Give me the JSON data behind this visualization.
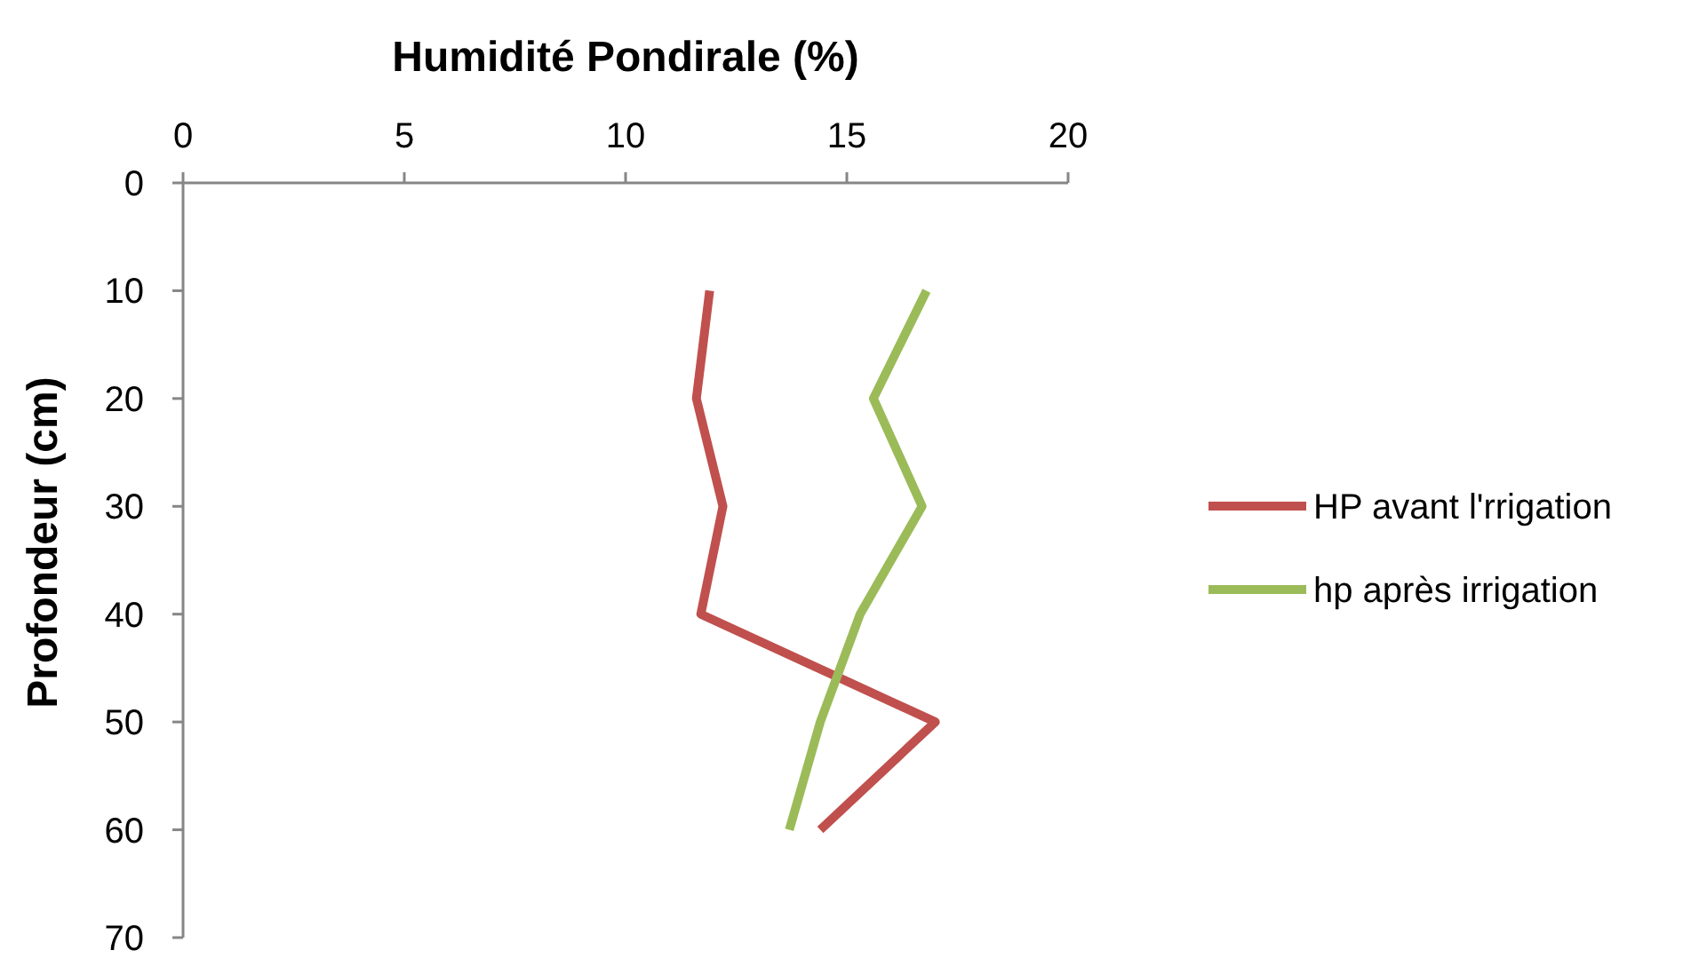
{
  "chart_data": {
    "type": "line",
    "xlabel": "Humidité Pondirale (%)",
    "ylabel": "Profondeur (cm)",
    "xlim": [
      0,
      20
    ],
    "xticks": [
      0,
      5,
      10,
      15,
      20
    ],
    "ylim": [
      70,
      0
    ],
    "yticks": [
      0,
      10,
      20,
      30,
      40,
      50,
      60,
      70
    ],
    "legend": "right",
    "grid": false,
    "series": [
      {
        "name": "HP avant l'rrigation",
        "color": "#c0504d",
        "x": [
          11.9,
          11.6,
          12.2,
          11.7,
          17.0,
          14.4
        ],
        "values": [
          10,
          20,
          30,
          40,
          50,
          60
        ]
      },
      {
        "name": "hp après irrigation",
        "color": "#9bbb59",
        "x": [
          16.8,
          15.6,
          16.7,
          15.3,
          14.4,
          13.7
        ],
        "values": [
          10,
          20,
          30,
          40,
          50,
          60
        ]
      }
    ]
  }
}
